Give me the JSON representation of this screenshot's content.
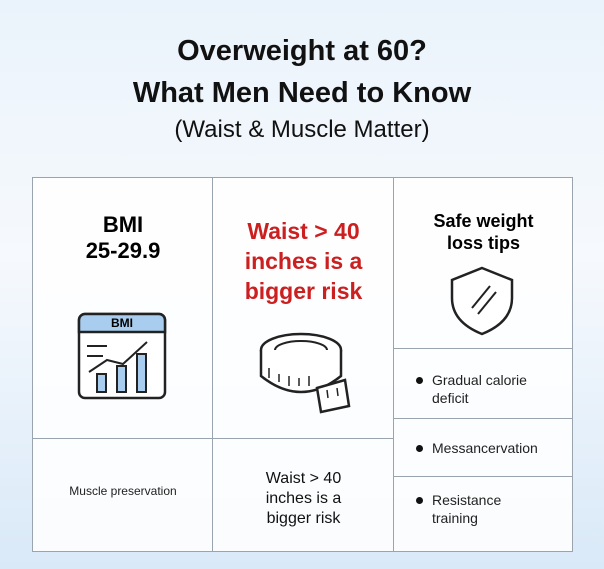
{
  "header": {
    "title_lines": [
      "Overweight at 60?",
      "What Men Need to Know"
    ],
    "subtitle": "(Waist & Muscle Matter)"
  },
  "grid": {
    "bmi": {
      "lines": [
        "BMI",
        "25-29.9"
      ],
      "icon_label": "BMI"
    },
    "waist_top": {
      "lines": [
        "Waist > 40",
        "inches is a",
        "bigger risk"
      ]
    },
    "tips": {
      "lines": [
        "Safe weight",
        "loss tips"
      ]
    },
    "list": [
      {
        "lines": [
          "Gradual calorie",
          "deficit"
        ]
      },
      {
        "lines": [
          "Messancervation"
        ]
      },
      {
        "lines": [
          "Resistance",
          "training"
        ]
      }
    ],
    "muscle": {
      "text": "Muscle preservation"
    },
    "waist_bottom": {
      "lines": [
        "Waist > 40",
        "inches is a",
        "bigger risk"
      ]
    }
  }
}
